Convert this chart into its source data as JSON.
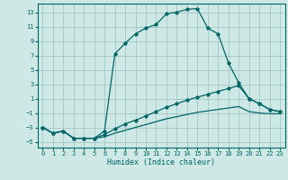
{
  "xlabel": "Humidex (Indice chaleur)",
  "background_color": "#cde8e5",
  "grid_color": "#a0c8c5",
  "line_color": "#006666",
  "xlim": [
    -0.5,
    23.5
  ],
  "ylim": [
    -5.8,
    14.2
  ],
  "yticks": [
    -5,
    -3,
    -1,
    1,
    3,
    5,
    7,
    9,
    11,
    13
  ],
  "xticks": [
    0,
    1,
    2,
    3,
    4,
    5,
    6,
    7,
    8,
    9,
    10,
    11,
    12,
    13,
    14,
    15,
    16,
    17,
    18,
    19,
    20,
    21,
    22,
    23
  ],
  "line1_x": [
    0,
    1,
    2,
    3,
    4,
    5,
    6,
    7,
    8,
    9,
    10,
    11,
    12,
    13,
    14,
    15,
    16,
    17,
    18,
    19,
    20,
    21,
    22,
    23
  ],
  "line1_y": [
    -3.0,
    -3.8,
    -3.5,
    -4.5,
    -4.5,
    -4.5,
    -3.5,
    7.2,
    8.7,
    10.0,
    10.8,
    11.3,
    12.8,
    13.0,
    13.4,
    13.5,
    10.8,
    10.0,
    6.0,
    3.2,
    1.0,
    0.3,
    -0.5,
    -0.8
  ],
  "line2_x": [
    0,
    1,
    2,
    3,
    4,
    5,
    6,
    7,
    8,
    9,
    10,
    11,
    12,
    13,
    14,
    15,
    16,
    17,
    18,
    19,
    20,
    21,
    22,
    23
  ],
  "line2_y": [
    -3.0,
    -3.8,
    -3.5,
    -4.5,
    -4.5,
    -4.5,
    -4.0,
    -3.2,
    -2.5,
    -2.0,
    -1.4,
    -0.8,
    -0.2,
    0.3,
    0.8,
    1.2,
    1.6,
    2.0,
    2.4,
    2.8,
    1.0,
    0.3,
    -0.5,
    -0.8
  ],
  "line3_x": [
    0,
    1,
    2,
    3,
    4,
    5,
    6,
    7,
    8,
    9,
    10,
    11,
    12,
    13,
    14,
    15,
    16,
    17,
    18,
    19,
    20,
    21,
    22,
    23
  ],
  "line3_y": [
    -3.0,
    -3.8,
    -3.5,
    -4.5,
    -4.5,
    -4.5,
    -4.3,
    -3.8,
    -3.4,
    -3.0,
    -2.6,
    -2.2,
    -1.8,
    -1.5,
    -1.2,
    -0.9,
    -0.7,
    -0.5,
    -0.3,
    -0.1,
    -0.8,
    -1.0,
    -1.1,
    -1.1
  ]
}
